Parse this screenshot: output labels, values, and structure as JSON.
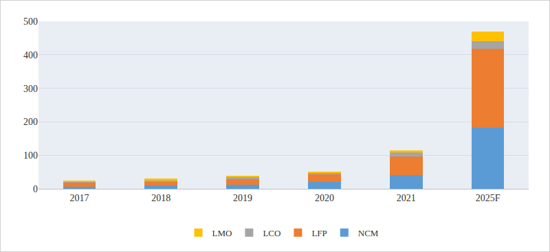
{
  "chart_data": {
    "type": "bar",
    "stacked": true,
    "categories": [
      "2017",
      "2018",
      "2019",
      "2020",
      "2021",
      "2025F"
    ],
    "series": [
      {
        "name": "NCM",
        "color": "#5b9bd5",
        "values": [
          6,
          10,
          13,
          20,
          42,
          183
        ]
      },
      {
        "name": "LFP",
        "color": "#ed7d31",
        "values": [
          14,
          12,
          15,
          24,
          55,
          235
        ]
      },
      {
        "name": "LCO",
        "color": "#a5a5a5",
        "values": [
          2,
          4,
          7,
          4,
          12,
          22
        ]
      },
      {
        "name": "LMO",
        "color": "#ffc000",
        "values": [
          1,
          4,
          3,
          4,
          6,
          30
        ]
      }
    ],
    "ylim": [
      0,
      500
    ],
    "yticks": [
      0,
      100,
      200,
      300,
      400,
      500
    ],
    "grid": true,
    "legend": "bottom"
  }
}
